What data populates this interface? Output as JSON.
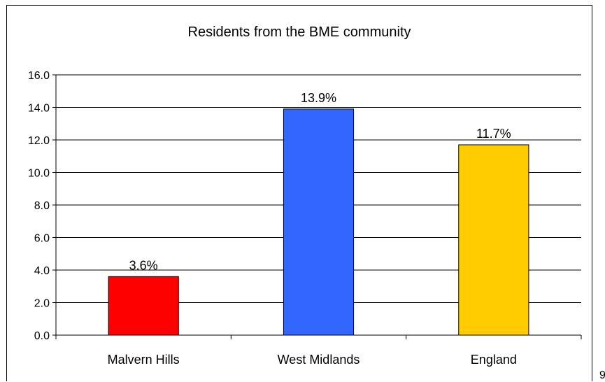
{
  "page_number": "9",
  "chart_data": {
    "type": "bar",
    "title": "Residents from the BME community",
    "xlabel": "",
    "ylabel": "",
    "categories": [
      "Malvern Hills",
      "West Midlands",
      "England"
    ],
    "values": [
      3.6,
      13.9,
      11.7
    ],
    "data_labels": [
      "3.6%",
      "13.9%",
      "11.7%"
    ],
    "bar_colors": [
      "#ff0000",
      "#3366ff",
      "#ffcc00"
    ],
    "ylim": [
      0,
      16
    ],
    "yticks": [
      "0.0",
      "2.0",
      "4.0",
      "6.0",
      "8.0",
      "10.0",
      "12.0",
      "14.0",
      "16.0"
    ],
    "grid": true,
    "legend": false
  }
}
